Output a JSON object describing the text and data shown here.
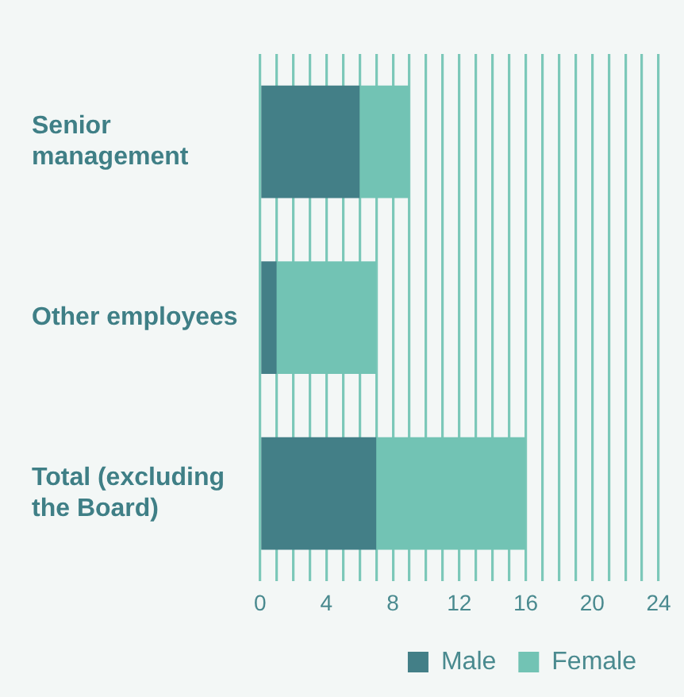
{
  "chart_data": {
    "type": "bar",
    "orientation": "horizontal",
    "stacked": true,
    "categories": [
      "Senior management",
      "Other employees",
      "Total (excluding the Board)"
    ],
    "series": [
      {
        "name": "Male",
        "color": "#437f87",
        "values": [
          6,
          1,
          7
        ]
      },
      {
        "name": "Female",
        "color": "#72c3b4",
        "values": [
          3,
          6,
          9
        ]
      }
    ],
    "xlim": [
      0,
      24
    ],
    "xticks": [
      0,
      {
        "value": 1,
        "label": null
      },
      {
        "value": 2,
        "label": null
      },
      {
        "value": 3,
        "label": null
      },
      4,
      {
        "value": 5,
        "label": null
      },
      {
        "value": 6,
        "label": null
      },
      {
        "value": 7,
        "label": null
      },
      8,
      {
        "value": 9,
        "label": null
      },
      {
        "value": 10,
        "label": null
      },
      {
        "value": 11,
        "label": null
      },
      12,
      {
        "value": 13,
        "label": null
      },
      {
        "value": 14,
        "label": null
      },
      {
        "value": 15,
        "label": null
      },
      16,
      {
        "value": 17,
        "label": null
      },
      {
        "value": 18,
        "label": null
      },
      {
        "value": 19,
        "label": null
      },
      20,
      {
        "value": 21,
        "label": null
      },
      {
        "value": 22,
        "label": null
      },
      {
        "value": 23,
        "label": null
      },
      24
    ],
    "grid": "x",
    "legend": "bottom right"
  }
}
